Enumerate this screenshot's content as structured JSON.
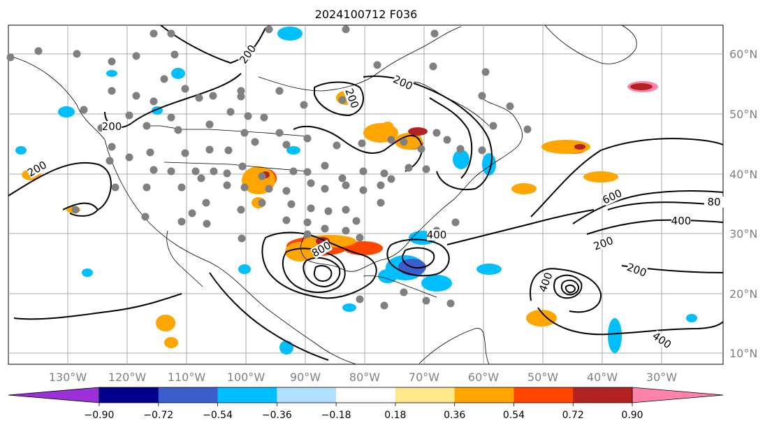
{
  "title": "2024100712 F036",
  "lat_labels": [
    "60°N",
    "50°N",
    "40°N",
    "30°N",
    "20°N",
    "10°N"
  ],
  "lon_labels": [
    "130°W",
    "120°W",
    "110°W",
    "100°W",
    "90°W",
    "80°W",
    "70°W",
    "60°W",
    "50°W",
    "40°W",
    "30°W"
  ],
  "contour_labels": [
    "200",
    "200",
    "200",
    "200",
    "200",
    "200",
    "400",
    "400",
    "400",
    "400",
    "600",
    "800",
    "80",
    "200"
  ],
  "colorbar": {
    "ticks": [
      "−0.90",
      "−0.72",
      "−0.54",
      "−0.36",
      "−0.18",
      "0.18",
      "0.36",
      "0.54",
      "0.72",
      "0.90"
    ],
    "colors": [
      "#9b30d9",
      "#00008b",
      "#3a5fcd",
      "#00bfff",
      "#b0e2ff",
      "#ffffff",
      "#ffe889",
      "#ffa500",
      "#ff4500",
      "#b22222",
      "#ff82ab"
    ]
  },
  "colors": {
    "contour": "#000000",
    "grid": "#aaaaaa",
    "station": "#808080",
    "axis_label": "#808080"
  }
}
